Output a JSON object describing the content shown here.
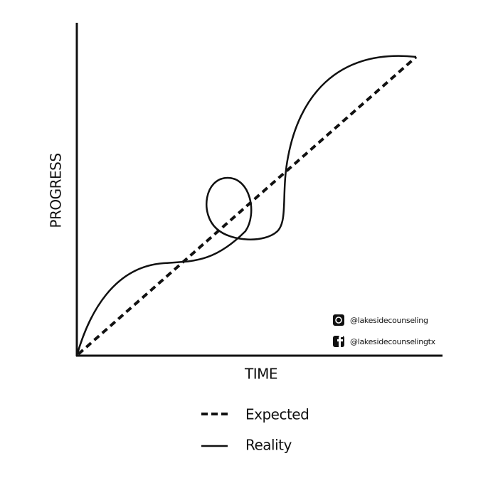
{
  "axes": {
    "y_label": "PROGRESS",
    "x_label": "TIME"
  },
  "legend": [
    {
      "label": "Expected"
    },
    {
      "label": "Reality"
    }
  ],
  "social": [
    {
      "handle": "@lakesidecounseling"
    },
    {
      "handle": "@lakesidecounselingtx"
    }
  ]
}
